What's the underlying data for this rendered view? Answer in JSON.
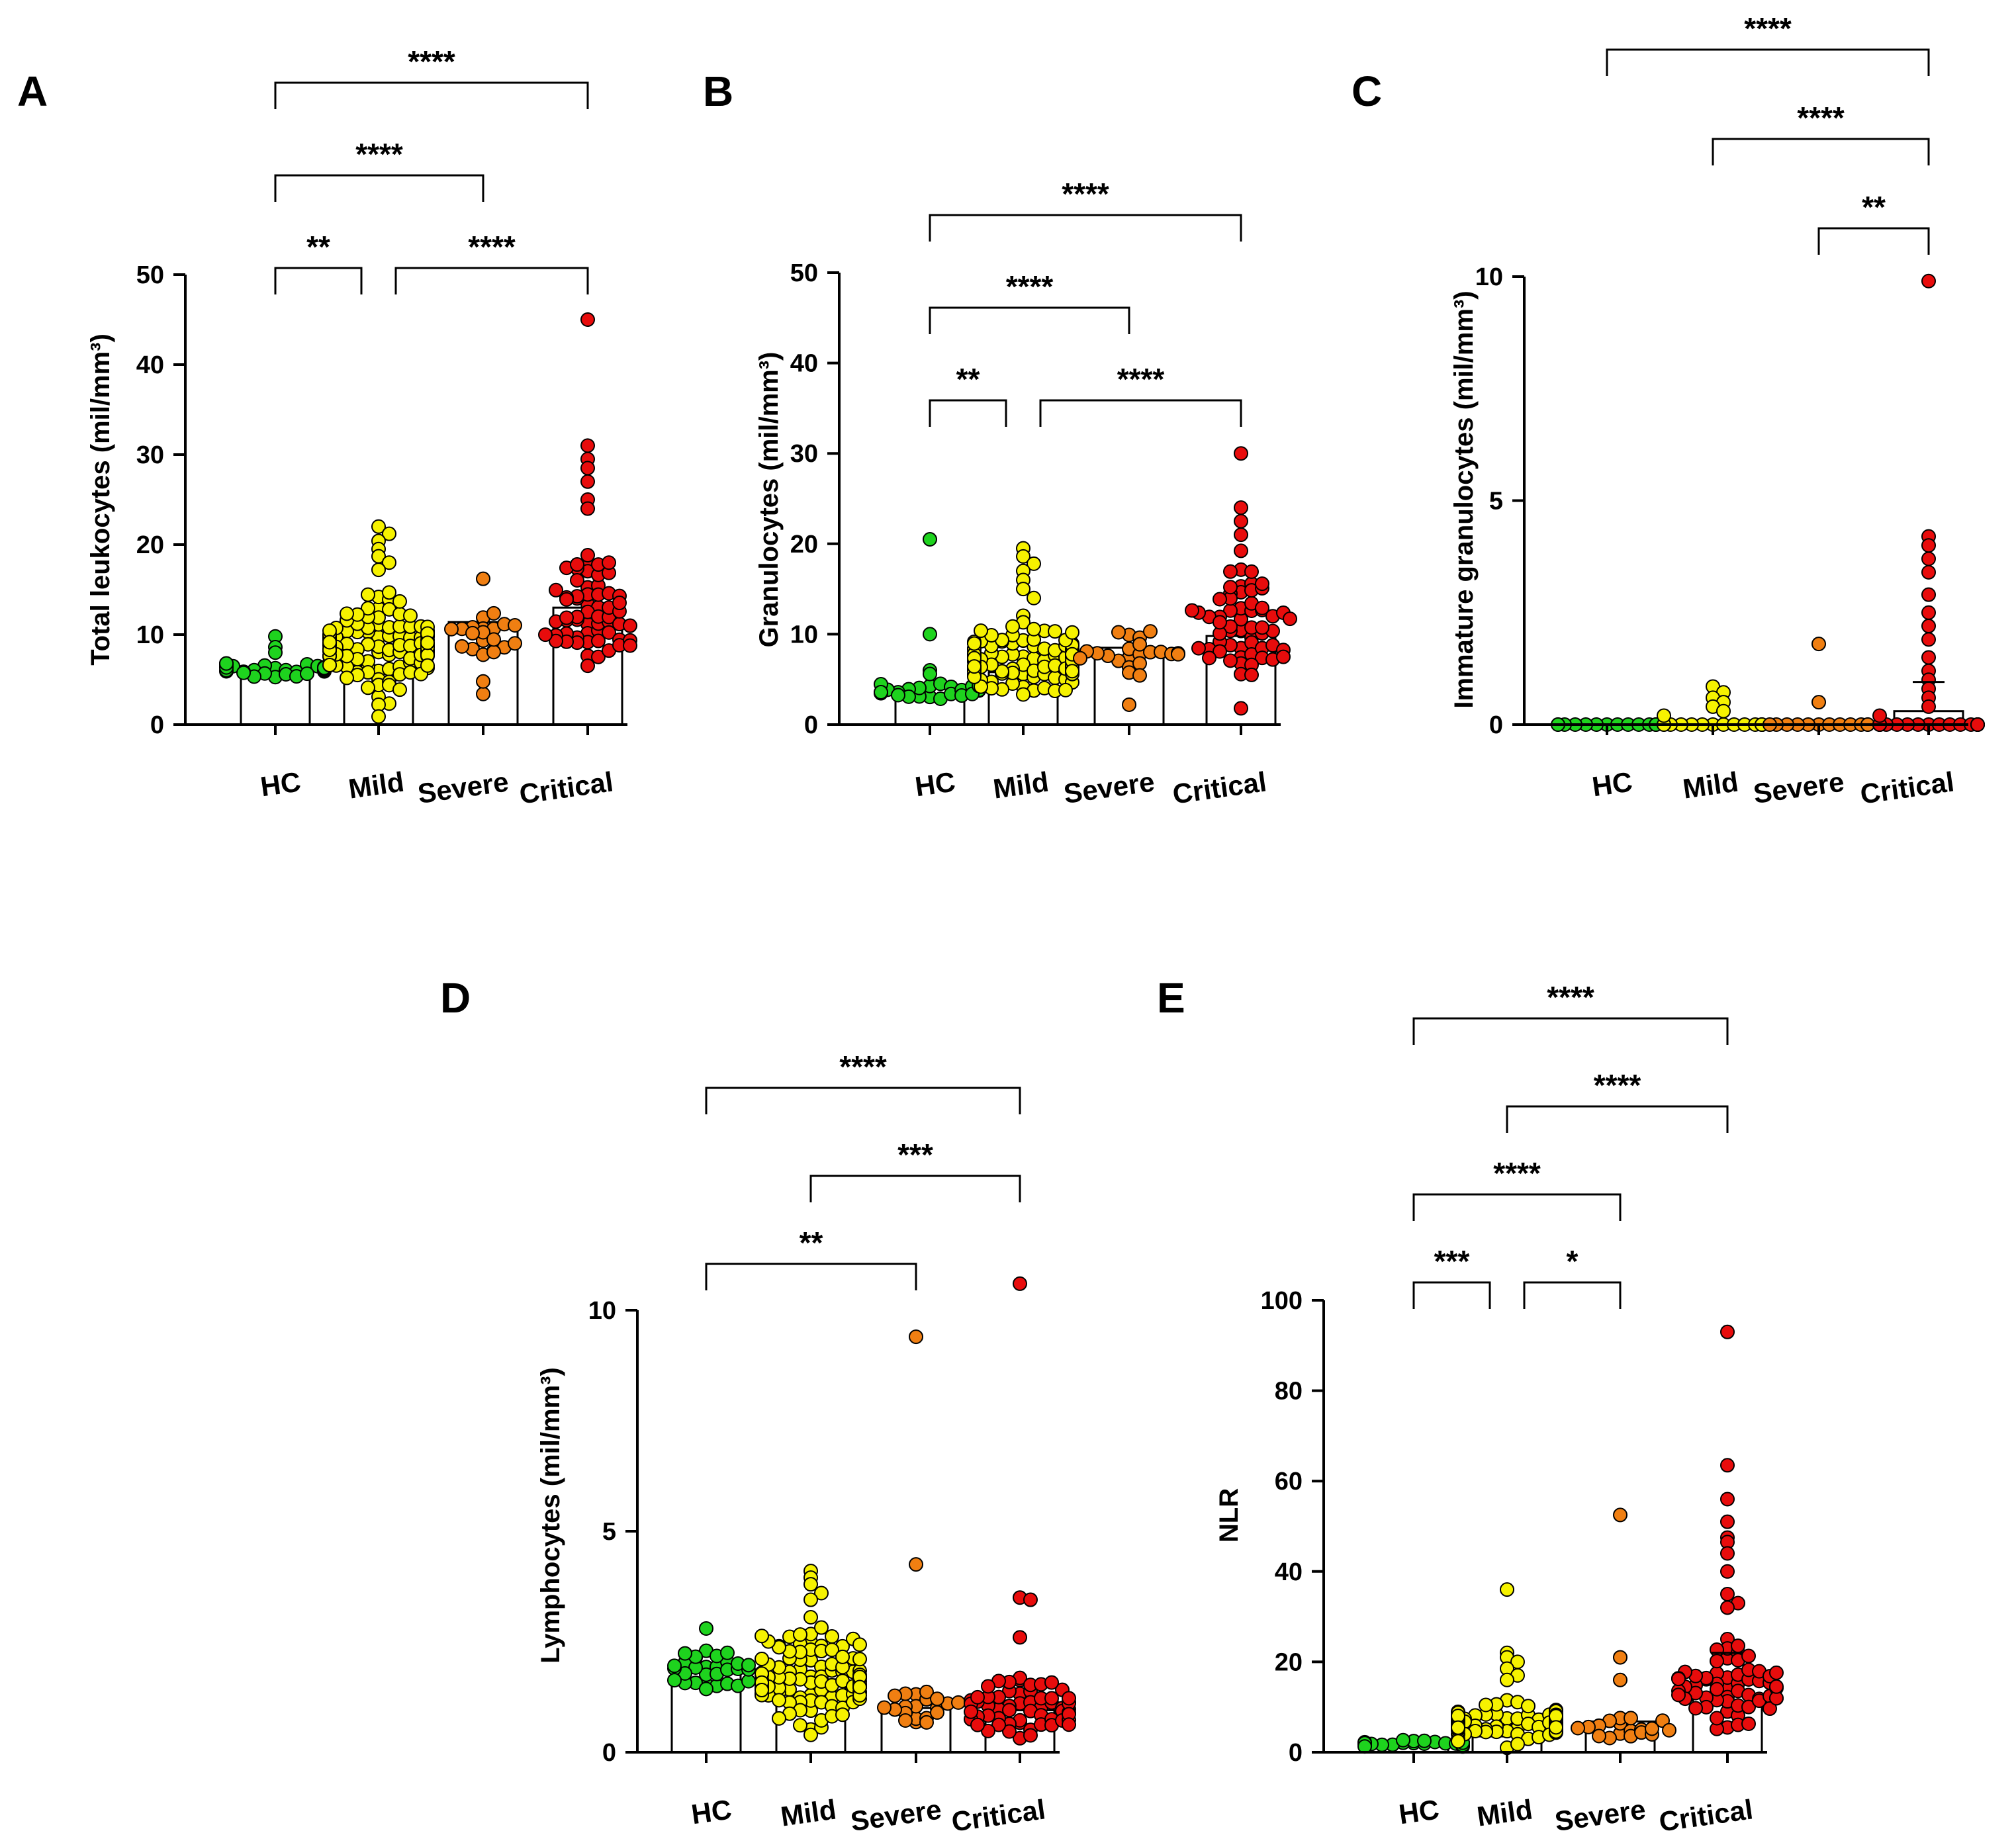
{
  "colors": {
    "HC": "#1ed31e",
    "Mild": "#f6f200",
    "Severe": "#f07f12",
    "Critical": "#e80c0c",
    "bar_fill": "#ffffff",
    "ink": "#000000"
  },
  "chart_data": [
    {
      "panel": "A",
      "type": "scatter",
      "ylabel": "Total leukocytes (mil/mm³)",
      "categories": [
        "HC",
        "Mild",
        "Severe",
        "Critical"
      ],
      "ylim": [
        0,
        50
      ],
      "yticks": [
        0,
        10,
        20,
        30,
        40,
        50
      ],
      "ytick_labels": [
        "0",
        "10",
        "20",
        "30",
        "40",
        "50"
      ],
      "grid": false,
      "bar_means": [
        5.8,
        8.8,
        11.4,
        13.0
      ],
      "groups": [
        {
          "name": "HC",
          "n": 30,
          "lo": 4.6,
          "hi": 7.6,
          "extra": [
            9.8,
            8.6,
            8.0
          ]
        },
        {
          "name": "Mild",
          "n": 120,
          "lo": 1.5,
          "hi": 16.0,
          "extra": [
            22.0,
            21.2,
            20.4,
            19.5,
            18.7,
            18.0,
            17.2,
            0.9
          ]
        },
        {
          "name": "Severe",
          "n": 20,
          "lo": 6.0,
          "hi": 13.8,
          "extra": [
            16.2,
            3.4,
            4.8
          ]
        },
        {
          "name": "Critical",
          "n": 60,
          "lo": 2.0,
          "hi": 22.0,
          "extra": [
            45.0,
            31.0,
            29.5,
            28.5,
            27.0,
            25.0,
            24.0
          ]
        }
      ],
      "comparisons": [
        {
          "from": 0,
          "to": 1,
          "label": "**",
          "level": 0
        },
        {
          "from": 1,
          "to": 3,
          "label": "****",
          "level": 0
        },
        {
          "from": 0,
          "to": 2,
          "label": "****",
          "level": 1
        },
        {
          "from": 0,
          "to": 3,
          "label": "****",
          "level": 2
        }
      ]
    },
    {
      "panel": "B",
      "type": "scatter",
      "ylabel": "Granulocytes (mil/mm³)",
      "categories": [
        "HC",
        "Mild",
        "Severe",
        "Critical"
      ],
      "ylim": [
        0,
        50
      ],
      "yticks": [
        0,
        10,
        20,
        30,
        40,
        50
      ],
      "ytick_labels": [
        "0",
        "10",
        "20",
        "30",
        "40",
        "50"
      ],
      "grid": false,
      "bar_means": [
        3.2,
        5.8,
        8.5,
        9.8
      ],
      "groups": [
        {
          "name": "HC",
          "n": 25,
          "lo": 2.2,
          "hi": 5.0,
          "extra": [
            20.5,
            10.0,
            6.0,
            5.6
          ]
        },
        {
          "name": "Mild",
          "n": 110,
          "lo": 1.0,
          "hi": 13.0,
          "extra": [
            19.5,
            18.6,
            17.8,
            17.0,
            16.0,
            15.0,
            14.0
          ]
        },
        {
          "name": "Severe",
          "n": 22,
          "lo": 3.8,
          "hi": 12.0,
          "extra": [
            2.2
          ]
        },
        {
          "name": "Critical",
          "n": 60,
          "lo": 2.5,
          "hi": 20.0,
          "extra": [
            30.0,
            24.0,
            22.5,
            21.0,
            1.8
          ]
        }
      ],
      "comparisons": [
        {
          "from": 0,
          "to": 1,
          "label": "**",
          "level": 0
        },
        {
          "from": 1,
          "to": 3,
          "label": "****",
          "level": 0
        },
        {
          "from": 0,
          "to": 2,
          "label": "****",
          "level": 1
        },
        {
          "from": 0,
          "to": 3,
          "label": "****",
          "level": 2
        }
      ]
    },
    {
      "panel": "C",
      "type": "scatter",
      "ylabel": "Immature granulocytes (mil/mm³)",
      "categories": [
        "HC",
        "Mild",
        "Severe",
        "Critical"
      ],
      "ylim": [
        0,
        10
      ],
      "yticks": [
        0,
        5,
        10
      ],
      "ytick_labels": [
        "0",
        "5",
        "10"
      ],
      "grid": false,
      "bar_means": [
        0.0,
        0.05,
        0.06,
        0.3
      ],
      "mean_marks": [
        null,
        null,
        null,
        0.95
      ],
      "groups": [
        {
          "name": "HC",
          "n": 14,
          "lo": 0,
          "hi": 0,
          "extra": []
        },
        {
          "name": "Mild",
          "n": 14,
          "lo": 0,
          "hi": 0,
          "extra": [
            0.85,
            0.72,
            0.6,
            0.5,
            0.4,
            0.3,
            0.2
          ]
        },
        {
          "name": "Severe",
          "n": 12,
          "lo": 0,
          "hi": 0,
          "extra": [
            1.8,
            0.5
          ]
        },
        {
          "name": "Critical",
          "n": 26,
          "lo": 0,
          "hi": 0,
          "extra": [
            9.9,
            4.2,
            4.0,
            3.7,
            3.4,
            2.9,
            2.5,
            2.2,
            1.9,
            1.5,
            1.2,
            1.0,
            0.8,
            0.6,
            0.4,
            0.2
          ]
        }
      ],
      "comparisons": [
        {
          "from": 2,
          "to": 3,
          "label": "**",
          "level": 0
        },
        {
          "from": 1,
          "to": 3,
          "label": "****",
          "level": 1
        },
        {
          "from": 0,
          "to": 3,
          "label": "****",
          "level": 2
        }
      ]
    },
    {
      "panel": "D",
      "type": "scatter",
      "ylabel": "Lymphocytes (mil/mm³)",
      "categories": [
        "HC",
        "Mild",
        "Severe",
        "Critical"
      ],
      "ylim": [
        0,
        11
      ],
      "yticks": [
        0,
        5,
        10
      ],
      "ytick_labels": [
        "0",
        "5",
        "10"
      ],
      "grid": false,
      "bar_means": [
        1.85,
        1.65,
        1.0,
        0.95
      ],
      "groups": [
        {
          "name": "HC",
          "n": 30,
          "lo": 1.0,
          "hi": 2.6,
          "extra": [
            2.8
          ]
        },
        {
          "name": "Mild",
          "n": 110,
          "lo": 0.1,
          "hi": 3.2,
          "extra": [
            4.1,
            3.95,
            3.8,
            3.6,
            3.45
          ]
        },
        {
          "name": "Severe",
          "n": 20,
          "lo": 0.2,
          "hi": 1.8,
          "extra": [
            9.4,
            4.25
          ]
        },
        {
          "name": "Critical",
          "n": 60,
          "lo": 0.05,
          "hi": 2.0,
          "extra": [
            10.6,
            3.5,
            3.45,
            2.6
          ]
        }
      ],
      "comparisons": [
        {
          "from": 0,
          "to": 2,
          "label": "**",
          "level": 0
        },
        {
          "from": 1,
          "to": 3,
          "label": "***",
          "level": 1
        },
        {
          "from": 0,
          "to": 3,
          "label": "****",
          "level": 2
        }
      ]
    },
    {
      "panel": "E",
      "type": "scatter",
      "ylabel": "NLR",
      "categories": [
        "HC",
        "Mild",
        "Severe",
        "Critical"
      ],
      "ylim": [
        0,
        100
      ],
      "yticks": [
        0,
        20,
        40,
        60,
        80,
        100
      ],
      "ytick_labels": [
        "0",
        "20",
        "40",
        "60",
        "80",
        "100"
      ],
      "grid": false,
      "bar_means": [
        1.8,
        3.5,
        6.8,
        12.5
      ],
      "mean_marks": [
        null,
        null,
        null,
        22.0
      ],
      "groups": [
        {
          "name": "HC",
          "n": 25,
          "lo": 0.8,
          "hi": 3.0,
          "extra": []
        },
        {
          "name": "Mild",
          "n": 100,
          "lo": 0.3,
          "hi": 13.0,
          "extra": [
            36.0,
            22.0,
            21.0,
            20.0,
            18.5,
            17.0,
            16.0
          ]
        },
        {
          "name": "Severe",
          "n": 18,
          "lo": 1.0,
          "hi": 11.0,
          "extra": [
            52.5,
            21.0,
            16.0
          ]
        },
        {
          "name": "Critical",
          "n": 60,
          "lo": 0.5,
          "hi": 30.0,
          "extra": [
            93.0,
            63.5,
            56.0,
            51.0,
            47.5,
            46.5,
            44.0,
            40.0,
            35.0,
            33.0,
            32.0
          ]
        }
      ],
      "comparisons": [
        {
          "from": 0,
          "to": 1,
          "label": "***",
          "level": 0
        },
        {
          "from": 1,
          "to": 2,
          "label": "*",
          "level": 0
        },
        {
          "from": 0,
          "to": 2,
          "label": "****",
          "level": 1
        },
        {
          "from": 1,
          "to": 3,
          "label": "****",
          "level": 2
        },
        {
          "from": 0,
          "to": 3,
          "label": "****",
          "level": 3
        }
      ]
    }
  ]
}
